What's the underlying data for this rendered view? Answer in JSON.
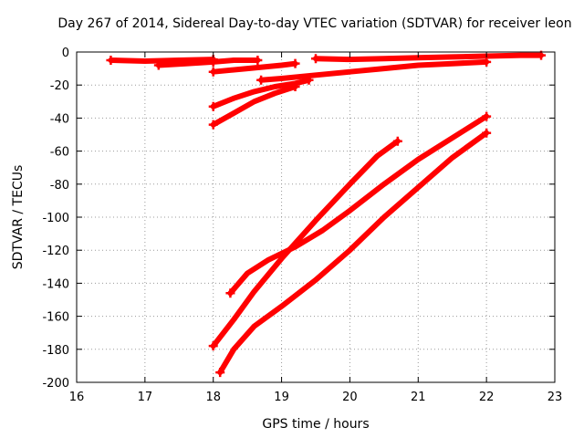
{
  "chart_data": {
    "type": "scatter",
    "title": "Day 267 of 2014, Sidereal Day-to-day VTEC variation (SDTVAR) for receiver leon",
    "xlabel": "GPS time / hours",
    "ylabel": "SDTVAR / TECUs",
    "xlim": [
      16,
      23
    ],
    "ylim": [
      -200,
      0
    ],
    "xticks": [
      "16",
      "17",
      "18",
      "19",
      "20",
      "21",
      "22",
      "23"
    ],
    "yticks": [
      "0",
      "-20",
      "-40",
      "-60",
      "-80",
      "-100",
      "-120",
      "-140",
      "-160",
      "-180",
      "-200"
    ],
    "grid": true,
    "color": "#ff0000",
    "series": [
      {
        "x": [
          16.5,
          17.0,
          17.5,
          18.0
        ],
        "y": [
          -5,
          -5.5,
          -5,
          -4.5
        ]
      },
      {
        "x": [
          17.2,
          17.6,
          18.0
        ],
        "y": [
          -8,
          -7,
          -6
        ]
      },
      {
        "x": [
          18.0,
          18.3,
          18.65
        ],
        "y": [
          -6,
          -5,
          -5
        ]
      },
      {
        "x": [
          18.0,
          18.5,
          19.0,
          19.2
        ],
        "y": [
          -12,
          -10,
          -8,
          -7
        ]
      },
      {
        "x": [
          19.5,
          20.0,
          20.5,
          21.0,
          21.5,
          22.0,
          22.5,
          22.8
        ],
        "y": [
          -4,
          -4.5,
          -4,
          -3.5,
          -3,
          -2.5,
          -2,
          -2
        ]
      },
      {
        "x": [
          18.7,
          19.0,
          19.5,
          20.0,
          20.5,
          21.0,
          21.5,
          22.0
        ],
        "y": [
          -17,
          -16,
          -14,
          -12,
          -10,
          -8,
          -7,
          -6
        ]
      },
      {
        "x": [
          18.0,
          18.3,
          18.6,
          18.9,
          19.2,
          19.4
        ],
        "y": [
          -33,
          -28,
          -24,
          -21,
          -19,
          -17
        ]
      },
      {
        "x": [
          18.0,
          18.3,
          18.6,
          18.9,
          19.2
        ],
        "y": [
          -44,
          -37,
          -30,
          -25,
          -21
        ]
      },
      {
        "x": [
          18.0,
          18.3,
          18.6,
          19.0,
          19.5,
          20.0,
          20.4,
          20.7
        ],
        "y": [
          -178,
          -162,
          -145,
          -125,
          -102,
          -80,
          -63,
          -54
        ]
      },
      {
        "x": [
          18.25,
          18.5,
          18.8,
          19.2,
          19.6,
          20.0,
          20.5,
          21.0,
          21.5,
          22.0
        ],
        "y": [
          -146,
          -134,
          -126,
          -118,
          -108,
          -96,
          -80,
          -65,
          -52,
          -39
        ]
      },
      {
        "x": [
          18.1,
          18.3,
          18.6,
          19.0,
          19.5,
          20.0,
          20.5,
          21.0,
          21.5,
          22.0
        ],
        "y": [
          -194,
          -180,
          -166,
          -154,
          -138,
          -120,
          -100,
          -82,
          -64,
          -49
        ]
      }
    ]
  }
}
